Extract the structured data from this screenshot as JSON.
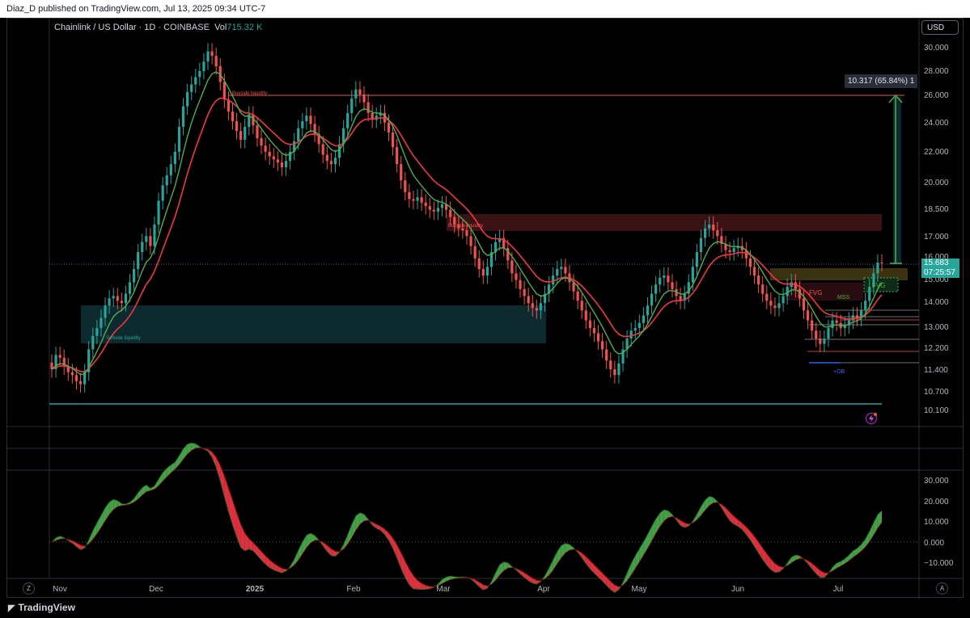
{
  "header": {
    "publish_info": "Diaz_D published on TradingView.com, Jul 13, 2025 09:34 UTC-7"
  },
  "legend": {
    "symbol_text": "Chainlink / US Dollar · 1D · COINBASE",
    "volume_label": "Vol",
    "volume_value": "715.32 K"
  },
  "currency_button": "USD",
  "measure_label": "10.317 (65.84%) 1",
  "last_price": {
    "value": "15.683",
    "countdown": "07:25:57"
  },
  "annotations": {
    "buyside_liquidity_1": "Buyside liquidity",
    "buyside_liquidity_2": "Buyside liquidity",
    "sellside_liquidity": "Sellside liquidity",
    "fvg_bear": "FVG",
    "fvg_bull": "FVG",
    "mss": "MSS",
    "ob": "+OB"
  },
  "price_axis_labels": [
    "30.000",
    "28.000",
    "26.000",
    "24.000",
    "22.000",
    "20.000",
    "18.500",
    "17.000",
    "16.000",
    "15.000",
    "14.000",
    "13.000",
    "12.200",
    "11.400",
    "10.700",
    "10.100"
  ],
  "oscillator_axis_labels": [
    "30.000",
    "20.000",
    "10.000",
    "0.000",
    "−10.000"
  ],
  "time_axis_labels": [
    "Nov",
    "Dec",
    "2025",
    "Feb",
    "Mar",
    "Apr",
    "May",
    "Jun",
    "Jul"
  ],
  "corner_buttons": {
    "left": "Z",
    "right": "A"
  },
  "footer": {
    "brand": "TradingView"
  },
  "colors": {
    "up": "#26a69a",
    "down": "#ef5350",
    "ema_fast": "#4caf50",
    "ema_slow": "#f23645",
    "level_line": "#1e9fb0",
    "buyside_line": "#ef5350",
    "sellside_zone": "#0d2a2e"
  },
  "chart_data": {
    "type": "candlestick",
    "symbol": "LINK/USD",
    "timeframe": "1D",
    "x_labels": [
      "Nov",
      "Dec",
      "2025",
      "Feb",
      "Mar",
      "Apr",
      "May",
      "Jun",
      "Jul"
    ],
    "ylim": [
      10.0,
      31.0
    ],
    "scale": "log",
    "closes": [
      11.4,
      11.9,
      11.8,
      11.5,
      11.3,
      11.2,
      11.0,
      10.9,
      11.3,
      12.1,
      12.6,
      12.9,
      13.3,
      13.8,
      14.1,
      14.2,
      14.0,
      13.9,
      14.3,
      14.8,
      15.4,
      16.2,
      16.7,
      17.0,
      16.5,
      17.6,
      18.9,
      19.8,
      20.4,
      21.1,
      21.9,
      23.6,
      25.1,
      26.2,
      26.8,
      27.4,
      27.9,
      28.7,
      29.6,
      29.2,
      28.3,
      27.0,
      25.6,
      24.7,
      24.0,
      23.3,
      22.7,
      23.6,
      24.5,
      23.7,
      22.8,
      22.3,
      21.9,
      21.6,
      21.4,
      21.2,
      20.9,
      21.3,
      21.9,
      22.6,
      23.5,
      24.0,
      24.4,
      23.8,
      23.1,
      22.4,
      21.7,
      21.3,
      21.1,
      21.5,
      22.4,
      23.5,
      24.6,
      25.7,
      26.4,
      26.0,
      25.4,
      24.6,
      24.1,
      24.4,
      24.6,
      23.9,
      23.2,
      22.2,
      21.1,
      20.1,
      19.4,
      19.0,
      18.9,
      19.1,
      18.8,
      18.6,
      18.4,
      18.3,
      18.5,
      18.7,
      18.4,
      18.0,
      17.6,
      17.4,
      17.3,
      17.0,
      16.5,
      15.9,
      15.4,
      15.1,
      15.5,
      16.2,
      16.7,
      16.9,
      16.4,
      15.8,
      15.2,
      14.9,
      14.5,
      14.2,
      13.9,
      13.7,
      13.6,
      13.9,
      14.3,
      14.7,
      15.1,
      15.4,
      15.5,
      15.2,
      14.8,
      14.4,
      14.0,
      13.6,
      13.2,
      12.9,
      12.7,
      12.4,
      12.1,
      11.7,
      11.4,
      11.2,
      11.6,
      12.1,
      12.5,
      12.8,
      12.9,
      13.1,
      13.4,
      13.8,
      14.3,
      14.7,
      15.0,
      15.1,
      14.8,
      14.5,
      14.2,
      14.0,
      14.3,
      14.8,
      15.5,
      16.2,
      16.9,
      17.4,
      17.6,
      17.3,
      17.0,
      16.6,
      16.3,
      16.2,
      16.4,
      16.5,
      16.3,
      15.9,
      15.5,
      15.1,
      14.7,
      14.3,
      14.0,
      13.8,
      13.7,
      13.9,
      14.2,
      14.6,
      14.8,
      14.5,
      14.1,
      13.6,
      13.2,
      12.8,
      12.5,
      12.3,
      12.5,
      12.9,
      13.2,
      13.1,
      12.9,
      13.0,
      13.2,
      13.4,
      13.3,
      13.6,
      14.0,
      14.6,
      15.2,
      15.7,
      15.68
    ]
  }
}
